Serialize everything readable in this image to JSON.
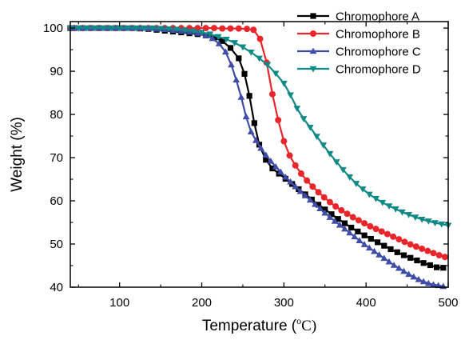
{
  "chart_data": {
    "type": "line",
    "title": "",
    "xlabel": "Temperature (",
    "xlabel_unit_super": "o",
    "xlabel_unit": "C)",
    "ylabel": "Weight (%)",
    "xlim": [
      40,
      500
    ],
    "ylim": [
      40,
      101.5
    ],
    "xticks": [
      100,
      200,
      300,
      400,
      500
    ],
    "yticks": [
      40,
      50,
      60,
      70,
      80,
      90,
      100
    ],
    "grid": false,
    "legend_position": "top-right",
    "series": [
      {
        "name": "Chromophore A",
        "color": "#000000",
        "marker": "square",
        "points": [
          [
            40,
            100
          ],
          [
            45,
            100
          ],
          [
            55,
            100
          ],
          [
            65,
            100
          ],
          [
            75,
            100
          ],
          [
            85,
            100
          ],
          [
            95,
            100
          ],
          [
            105,
            100
          ],
          [
            115,
            100
          ],
          [
            125,
            99.9
          ],
          [
            135,
            99.8
          ],
          [
            145,
            99.6
          ],
          [
            155,
            99.4
          ],
          [
            165,
            99.2
          ],
          [
            175,
            99.0
          ],
          [
            185,
            98.8
          ],
          [
            195,
            98.6
          ],
          [
            205,
            98.3
          ],
          [
            215,
            97.8
          ],
          [
            225,
            97.0
          ],
          [
            235,
            95.4
          ],
          [
            245,
            93.0
          ],
          [
            252,
            89.4
          ],
          [
            258,
            84.3
          ],
          [
            264,
            78.0
          ],
          [
            270,
            73.0
          ],
          [
            278,
            69.5
          ],
          [
            286,
            67.5
          ],
          [
            294,
            66.3
          ],
          [
            302,
            65.1
          ],
          [
            310,
            63.9
          ],
          [
            318,
            62.7
          ],
          [
            326,
            61.5
          ],
          [
            334,
            60.3
          ],
          [
            342,
            59.1
          ],
          [
            350,
            58.0
          ],
          [
            358,
            56.9
          ],
          [
            366,
            55.8
          ],
          [
            374,
            54.8
          ],
          [
            382,
            53.8
          ],
          [
            390,
            52.9
          ],
          [
            398,
            52.0
          ],
          [
            406,
            51.2
          ],
          [
            414,
            50.4
          ],
          [
            422,
            49.6
          ],
          [
            430,
            48.8
          ],
          [
            438,
            48.1
          ],
          [
            446,
            47.4
          ],
          [
            454,
            46.8
          ],
          [
            462,
            46.2
          ],
          [
            470,
            45.6
          ],
          [
            478,
            45.1
          ],
          [
            486,
            44.6
          ],
          [
            494,
            44.5
          ]
        ]
      },
      {
        "name": "Chromophore B",
        "color": "#e8262a",
        "marker": "circle",
        "points": [
          [
            40,
            100
          ],
          [
            45,
            100
          ],
          [
            55,
            100
          ],
          [
            65,
            100
          ],
          [
            75,
            100
          ],
          [
            85,
            100
          ],
          [
            95,
            100
          ],
          [
            105,
            100
          ],
          [
            115,
            100
          ],
          [
            125,
            100
          ],
          [
            135,
            100
          ],
          [
            145,
            100
          ],
          [
            155,
            100
          ],
          [
            165,
            100
          ],
          [
            175,
            100
          ],
          [
            185,
            100
          ],
          [
            195,
            100
          ],
          [
            205,
            100
          ],
          [
            215,
            100
          ],
          [
            225,
            99.9
          ],
          [
            235,
            99.9
          ],
          [
            245,
            99.9
          ],
          [
            255,
            99.8
          ],
          [
            263,
            99.6
          ],
          [
            271,
            97.5
          ],
          [
            279,
            92.0
          ],
          [
            286,
            84.7
          ],
          [
            293,
            78.7
          ],
          [
            300,
            73.8
          ],
          [
            307,
            70.5
          ],
          [
            314,
            68.2
          ],
          [
            321,
            66.3
          ],
          [
            328,
            64.7
          ],
          [
            335,
            63.3
          ],
          [
            342,
            62.0
          ],
          [
            349,
            60.8
          ],
          [
            356,
            59.7
          ],
          [
            363,
            58.7
          ],
          [
            370,
            57.8
          ],
          [
            377,
            57.0
          ],
          [
            384,
            56.2
          ],
          [
            391,
            55.5
          ],
          [
            398,
            54.8
          ],
          [
            405,
            54.1
          ],
          [
            412,
            53.5
          ],
          [
            419,
            52.9
          ],
          [
            426,
            52.3
          ],
          [
            433,
            51.7
          ],
          [
            440,
            51.1
          ],
          [
            447,
            50.5
          ],
          [
            454,
            49.9
          ],
          [
            461,
            49.4
          ],
          [
            468,
            48.9
          ],
          [
            475,
            48.4
          ],
          [
            482,
            47.9
          ],
          [
            489,
            47.4
          ],
          [
            496,
            47.0
          ]
        ]
      },
      {
        "name": "Chromophore C",
        "color": "#3f4ca8",
        "marker": "triangle-up",
        "points": [
          [
            40,
            100
          ],
          [
            45,
            100
          ],
          [
            55,
            100
          ],
          [
            65,
            100
          ],
          [
            75,
            100
          ],
          [
            85,
            100
          ],
          [
            95,
            100
          ],
          [
            105,
            100
          ],
          [
            115,
            100
          ],
          [
            125,
            100
          ],
          [
            135,
            99.9
          ],
          [
            145,
            99.8
          ],
          [
            155,
            99.7
          ],
          [
            165,
            99.5
          ],
          [
            175,
            99.3
          ],
          [
            185,
            99.1
          ],
          [
            195,
            98.8
          ],
          [
            205,
            98.3
          ],
          [
            213,
            97.6
          ],
          [
            221,
            96.4
          ],
          [
            229,
            94.5
          ],
          [
            236,
            91.5
          ],
          [
            242,
            88.0
          ],
          [
            248,
            84.0
          ],
          [
            254,
            79.5
          ],
          [
            260,
            76.0
          ],
          [
            266,
            74.0
          ],
          [
            272,
            72.2
          ],
          [
            278,
            70.6
          ],
          [
            284,
            69.2
          ],
          [
            290,
            67.9
          ],
          [
            296,
            66.7
          ],
          [
            302,
            65.5
          ],
          [
            308,
            64.4
          ],
          [
            314,
            63.3
          ],
          [
            320,
            62.2
          ],
          [
            326,
            61.2
          ],
          [
            332,
            60.2
          ],
          [
            338,
            59.2
          ],
          [
            344,
            58.2
          ],
          [
            350,
            57.2
          ],
          [
            356,
            56.2
          ],
          [
            362,
            55.3
          ],
          [
            368,
            54.4
          ],
          [
            374,
            53.5
          ],
          [
            380,
            52.6
          ],
          [
            386,
            51.7
          ],
          [
            392,
            50.8
          ],
          [
            398,
            49.9
          ],
          [
            404,
            49.1
          ],
          [
            410,
            48.3
          ],
          [
            416,
            47.5
          ],
          [
            422,
            46.7
          ],
          [
            428,
            45.9
          ],
          [
            434,
            45.1
          ],
          [
            440,
            44.4
          ],
          [
            446,
            43.7
          ],
          [
            452,
            43.0
          ],
          [
            458,
            42.4
          ],
          [
            464,
            41.8
          ],
          [
            470,
            41.3
          ],
          [
            476,
            40.9
          ],
          [
            482,
            40.6
          ],
          [
            488,
            40.4
          ],
          [
            494,
            40.2
          ]
        ]
      },
      {
        "name": "Chromophore D",
        "color": "#0f8a86",
        "marker": "triangle-down",
        "points": [
          [
            40,
            100
          ],
          [
            50,
            100
          ],
          [
            60,
            100
          ],
          [
            70,
            100
          ],
          [
            80,
            100
          ],
          [
            90,
            100
          ],
          [
            100,
            100
          ],
          [
            110,
            100
          ],
          [
            120,
            100
          ],
          [
            130,
            100
          ],
          [
            140,
            100
          ],
          [
            150,
            99.9
          ],
          [
            160,
            99.8
          ],
          [
            170,
            99.7
          ],
          [
            180,
            99.5
          ],
          [
            190,
            99.3
          ],
          [
            200,
            99.0
          ],
          [
            210,
            98.6
          ],
          [
            220,
            98.0
          ],
          [
            230,
            97.4
          ],
          [
            240,
            96.6
          ],
          [
            250,
            95.6
          ],
          [
            260,
            94.4
          ],
          [
            270,
            93.0
          ],
          [
            280,
            91.5
          ],
          [
            290,
            89.5
          ],
          [
            300,
            87.2
          ],
          [
            308,
            84.5
          ],
          [
            316,
            81.4
          ],
          [
            324,
            79.0
          ],
          [
            332,
            77.0
          ],
          [
            340,
            74.9
          ],
          [
            348,
            72.9
          ],
          [
            356,
            70.9
          ],
          [
            364,
            69.0
          ],
          [
            372,
            67.2
          ],
          [
            380,
            65.5
          ],
          [
            388,
            64.0
          ],
          [
            396,
            62.7
          ],
          [
            404,
            61.5
          ],
          [
            412,
            60.5
          ],
          [
            420,
            59.6
          ],
          [
            428,
            58.8
          ],
          [
            436,
            58.1
          ],
          [
            444,
            57.4
          ],
          [
            452,
            56.8
          ],
          [
            460,
            56.2
          ],
          [
            468,
            55.7
          ],
          [
            476,
            55.3
          ],
          [
            484,
            54.9
          ],
          [
            492,
            54.6
          ],
          [
            500,
            54.3
          ]
        ]
      }
    ]
  }
}
